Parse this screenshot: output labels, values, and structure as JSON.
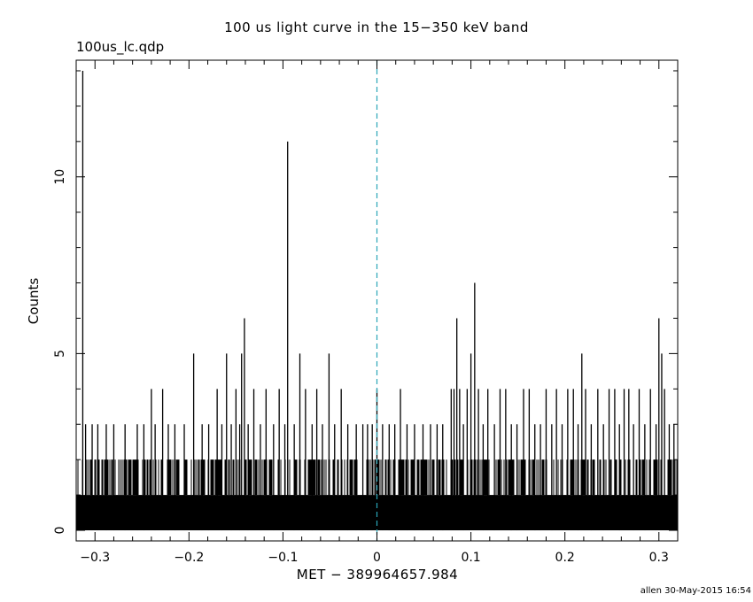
{
  "chart_data": {
    "type": "line",
    "style": "histogram-steps",
    "title": "100 us light curve in the 15−350 keV band",
    "plot_label": "100us_lc.qdp",
    "xlabel": "MET − 389964657.984",
    "ylabel": "Counts",
    "xlim": [
      -0.32,
      0.32
    ],
    "ylim": [
      -0.3,
      13.3
    ],
    "x_ticks": [
      -0.3,
      -0.2,
      -0.1,
      0,
      0.1,
      0.2,
      0.3
    ],
    "x_tick_labels": [
      "−0.3",
      "−0.2",
      "−0.1",
      "0",
      "0.1",
      "0.2",
      "0.3"
    ],
    "y_ticks": [
      0,
      5,
      10
    ],
    "y_tick_labels": [
      "0",
      "5",
      "10"
    ],
    "bin_width": 0.0001,
    "reference_line": {
      "x": 0,
      "color": "#2aa6b8",
      "style": "dashed"
    },
    "baseline_levels": {
      "dense_band_max": 1,
      "frequent_max": 2
    },
    "series": [
      {
        "values_description": "binned counts; dense alternation 0-2 with sparse spikes",
        "color": "#000000",
        "spikes": [
          {
            "x": -0.313,
            "y": 13
          },
          {
            "x": -0.31,
            "y": 3
          },
          {
            "x": -0.303,
            "y": 3
          },
          {
            "x": -0.297,
            "y": 3
          },
          {
            "x": -0.288,
            "y": 3
          },
          {
            "x": -0.28,
            "y": 3
          },
          {
            "x": -0.268,
            "y": 3
          },
          {
            "x": -0.255,
            "y": 3
          },
          {
            "x": -0.248,
            "y": 3
          },
          {
            "x": -0.24,
            "y": 4
          },
          {
            "x": -0.236,
            "y": 3
          },
          {
            "x": -0.228,
            "y": 4
          },
          {
            "x": -0.222,
            "y": 3
          },
          {
            "x": -0.215,
            "y": 3
          },
          {
            "x": -0.205,
            "y": 3
          },
          {
            "x": -0.195,
            "y": 5
          },
          {
            "x": -0.186,
            "y": 3
          },
          {
            "x": -0.179,
            "y": 3
          },
          {
            "x": -0.17,
            "y": 4
          },
          {
            "x": -0.165,
            "y": 3
          },
          {
            "x": -0.16,
            "y": 5
          },
          {
            "x": -0.155,
            "y": 3
          },
          {
            "x": -0.15,
            "y": 4
          },
          {
            "x": -0.146,
            "y": 3
          },
          {
            "x": -0.144,
            "y": 5
          },
          {
            "x": -0.141,
            "y": 6
          },
          {
            "x": -0.137,
            "y": 3
          },
          {
            "x": -0.131,
            "y": 4
          },
          {
            "x": -0.124,
            "y": 3
          },
          {
            "x": -0.118,
            "y": 4
          },
          {
            "x": -0.11,
            "y": 3
          },
          {
            "x": -0.104,
            "y": 4
          },
          {
            "x": -0.098,
            "y": 3
          },
          {
            "x": -0.095,
            "y": 11
          },
          {
            "x": -0.088,
            "y": 3
          },
          {
            "x": -0.082,
            "y": 5
          },
          {
            "x": -0.076,
            "y": 4
          },
          {
            "x": -0.069,
            "y": 3
          },
          {
            "x": -0.064,
            "y": 4
          },
          {
            "x": -0.058,
            "y": 3
          },
          {
            "x": -0.051,
            "y": 5
          },
          {
            "x": -0.045,
            "y": 3
          },
          {
            "x": -0.038,
            "y": 4
          },
          {
            "x": -0.031,
            "y": 3
          },
          {
            "x": -0.022,
            "y": 3
          },
          {
            "x": -0.015,
            "y": 3
          },
          {
            "x": -0.01,
            "y": 3
          },
          {
            "x": -0.005,
            "y": 3
          },
          {
            "x": 0.0,
            "y": 4
          },
          {
            "x": 0.006,
            "y": 3
          },
          {
            "x": 0.013,
            "y": 3
          },
          {
            "x": 0.019,
            "y": 3
          },
          {
            "x": 0.025,
            "y": 4
          },
          {
            "x": 0.032,
            "y": 3
          },
          {
            "x": 0.04,
            "y": 3
          },
          {
            "x": 0.049,
            "y": 3
          },
          {
            "x": 0.057,
            "y": 3
          },
          {
            "x": 0.064,
            "y": 3
          },
          {
            "x": 0.07,
            "y": 3
          },
          {
            "x": 0.079,
            "y": 4
          },
          {
            "x": 0.082,
            "y": 4
          },
          {
            "x": 0.085,
            "y": 6
          },
          {
            "x": 0.088,
            "y": 4
          },
          {
            "x": 0.092,
            "y": 3
          },
          {
            "x": 0.096,
            "y": 4
          },
          {
            "x": 0.1,
            "y": 5
          },
          {
            "x": 0.104,
            "y": 7
          },
          {
            "x": 0.108,
            "y": 4
          },
          {
            "x": 0.113,
            "y": 3
          },
          {
            "x": 0.118,
            "y": 4
          },
          {
            "x": 0.125,
            "y": 3
          },
          {
            "x": 0.131,
            "y": 4
          },
          {
            "x": 0.137,
            "y": 4
          },
          {
            "x": 0.143,
            "y": 3
          },
          {
            "x": 0.149,
            "y": 3
          },
          {
            "x": 0.156,
            "y": 4
          },
          {
            "x": 0.162,
            "y": 4
          },
          {
            "x": 0.168,
            "y": 3
          },
          {
            "x": 0.174,
            "y": 3
          },
          {
            "x": 0.18,
            "y": 4
          },
          {
            "x": 0.186,
            "y": 3
          },
          {
            "x": 0.191,
            "y": 4
          },
          {
            "x": 0.197,
            "y": 3
          },
          {
            "x": 0.203,
            "y": 4
          },
          {
            "x": 0.209,
            "y": 4
          },
          {
            "x": 0.214,
            "y": 3
          },
          {
            "x": 0.218,
            "y": 5
          },
          {
            "x": 0.222,
            "y": 4
          },
          {
            "x": 0.228,
            "y": 3
          },
          {
            "x": 0.235,
            "y": 4
          },
          {
            "x": 0.241,
            "y": 3
          },
          {
            "x": 0.247,
            "y": 4
          },
          {
            "x": 0.253,
            "y": 4
          },
          {
            "x": 0.258,
            "y": 3
          },
          {
            "x": 0.263,
            "y": 4
          },
          {
            "x": 0.268,
            "y": 4
          },
          {
            "x": 0.273,
            "y": 3
          },
          {
            "x": 0.279,
            "y": 4
          },
          {
            "x": 0.285,
            "y": 3
          },
          {
            "x": 0.291,
            "y": 4
          },
          {
            "x": 0.297,
            "y": 3
          },
          {
            "x": 0.3,
            "y": 6
          },
          {
            "x": 0.303,
            "y": 5
          },
          {
            "x": 0.306,
            "y": 4
          },
          {
            "x": 0.311,
            "y": 3
          },
          {
            "x": 0.316,
            "y": 3
          }
        ]
      }
    ],
    "grid": false,
    "legend": "none"
  },
  "footer": {
    "credit": "allen 30-May-2015 16:54"
  }
}
